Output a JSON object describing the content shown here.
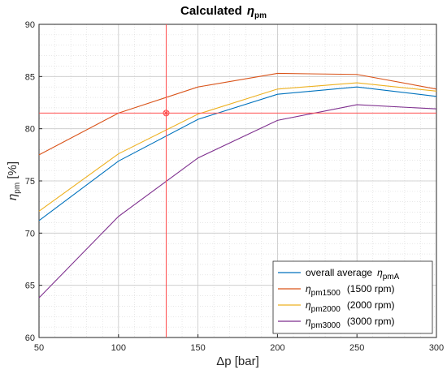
{
  "chart_data": {
    "type": "line",
    "title": "Calculated",
    "title_symbol": "η",
    "title_sub": "pm",
    "xlabel": "Δp  [bar]",
    "ylabel_symbol": "η",
    "ylabel_sub": "pm",
    "ylabel_unit": " [%]",
    "xlim": [
      50,
      300
    ],
    "ylim": [
      60,
      90
    ],
    "x_ticks": [
      50,
      100,
      150,
      200,
      250,
      300
    ],
    "y_ticks": [
      60,
      65,
      70,
      75,
      80,
      85,
      90
    ],
    "grid": true,
    "minor_grid": true,
    "legend_position": "bottom-right",
    "x": [
      50,
      100,
      150,
      200,
      250,
      300
    ],
    "series": [
      {
        "name": "overall  average",
        "symbol": "η",
        "sub": "pmA",
        "color": "#0072BD",
        "values": [
          71.2,
          76.9,
          80.9,
          83.3,
          84.0,
          83.1
        ]
      },
      {
        "name": "(1500  rpm)",
        "symbol": "η",
        "sub": "pm1500",
        "color": "#D95319",
        "values": [
          77.5,
          81.5,
          84.0,
          85.3,
          85.2,
          83.8
        ]
      },
      {
        "name": "(2000  rpm)",
        "symbol": "η",
        "sub": "pm2000",
        "color": "#EDB120",
        "values": [
          72.1,
          77.6,
          81.4,
          83.8,
          84.4,
          83.6
        ]
      },
      {
        "name": "(3000  rpm)",
        "symbol": "η",
        "sub": "pm3000",
        "color": "#7E2F8E",
        "values": [
          63.8,
          71.6,
          77.2,
          80.8,
          82.3,
          81.9
        ]
      }
    ],
    "crosshair": {
      "x": 130,
      "y": 81.5,
      "color": "#FF4D4D"
    }
  }
}
